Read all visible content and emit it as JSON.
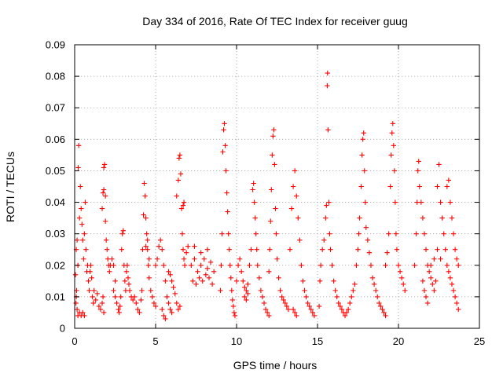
{
  "chart_data": {
    "type": "scatter",
    "title": "Day 334 of 2016, Rate Of TEC Index for receiver guug",
    "xlabel": "GPS time / hours",
    "ylabel": "ROTI / TECUs",
    "xlim": [
      0,
      25
    ],
    "ylim": [
      0,
      0.09
    ],
    "xticks": [
      0,
      5,
      10,
      15,
      20,
      25
    ],
    "xtick_labels": [
      "0",
      "5",
      "10",
      "15",
      "20",
      "25"
    ],
    "yticks": [
      0,
      0.01,
      0.02,
      0.03,
      0.04,
      0.05,
      0.06,
      0.07,
      0.08,
      0.09
    ],
    "ytick_labels": [
      "0",
      "0.01",
      "0.02",
      "0.03",
      "0.04",
      "0.05",
      "0.06",
      "0.07",
      "0.08",
      "0.09"
    ],
    "grid": true,
    "marker": "plus",
    "color": "#ff0000",
    "points": [
      [
        0.05,
        0.017
      ],
      [
        0.1,
        0.025
      ],
      [
        0.15,
        0.028
      ],
      [
        0.2,
        0.02
      ],
      [
        0.22,
        0.051
      ],
      [
        0.25,
        0.058
      ],
      [
        0.3,
        0.035
      ],
      [
        0.35,
        0.045
      ],
      [
        0.4,
        0.038
      ],
      [
        0.45,
        0.033
      ],
      [
        0.5,
        0.028
      ],
      [
        0.55,
        0.022
      ],
      [
        0.6,
        0.03
      ],
      [
        0.65,
        0.04
      ],
      [
        0.7,
        0.025
      ],
      [
        0.75,
        0.018
      ],
      [
        0.08,
        0.008
      ],
      [
        0.15,
        0.006
      ],
      [
        0.2,
        0.004
      ],
      [
        0.3,
        0.005
      ],
      [
        0.4,
        0.004
      ],
      [
        0.5,
        0.005
      ],
      [
        0.6,
        0.004
      ],
      [
        0.1,
        0.01
      ],
      [
        0.12,
        0.012
      ],
      [
        0.8,
        0.02
      ],
      [
        0.85,
        0.015
      ],
      [
        0.9,
        0.012
      ],
      [
        0.95,
        0.018
      ],
      [
        1.0,
        0.02
      ],
      [
        1.05,
        0.016
      ],
      [
        1.1,
        0.01
      ],
      [
        1.15,
        0.008
      ],
      [
        1.2,
        0.012
      ],
      [
        1.3,
        0.009
      ],
      [
        1.4,
        0.011
      ],
      [
        1.5,
        0.007
      ],
      [
        1.6,
        0.006
      ],
      [
        1.7,
        0.008
      ],
      [
        1.75,
        0.01
      ],
      [
        1.8,
        0.005
      ],
      [
        1.7,
        0.038
      ],
      [
        1.75,
        0.043
      ],
      [
        1.8,
        0.051
      ],
      [
        1.85,
        0.052
      ],
      [
        1.9,
        0.034
      ],
      [
        1.95,
        0.028
      ],
      [
        2.0,
        0.025
      ],
      [
        2.05,
        0.022
      ],
      [
        2.1,
        0.02
      ],
      [
        2.15,
        0.018
      ],
      [
        2.2,
        0.02
      ],
      [
        1.9,
        0.042
      ],
      [
        1.8,
        0.044
      ],
      [
        2.4,
        0.012
      ],
      [
        2.5,
        0.01
      ],
      [
        2.6,
        0.008
      ],
      [
        2.7,
        0.006
      ],
      [
        2.75,
        0.005
      ],
      [
        2.8,
        0.007
      ],
      [
        2.85,
        0.01
      ],
      [
        2.9,
        0.025
      ],
      [
        2.95,
        0.03
      ],
      [
        3.0,
        0.031
      ],
      [
        3.05,
        0.02
      ],
      [
        3.1,
        0.015
      ],
      [
        3.15,
        0.012
      ],
      [
        3.2,
        0.018
      ],
      [
        3.25,
        0.02
      ],
      [
        3.3,
        0.016
      ],
      [
        3.35,
        0.014
      ],
      [
        3.4,
        0.012
      ],
      [
        3.5,
        0.01
      ],
      [
        3.6,
        0.009
      ],
      [
        3.7,
        0.01
      ],
      [
        3.8,
        0.008
      ],
      [
        3.9,
        0.006
      ],
      [
        4.0,
        0.005
      ],
      [
        2.5,
        0.015
      ],
      [
        2.3,
        0.022
      ],
      [
        2.4,
        0.02
      ],
      [
        4.1,
        0.009
      ],
      [
        4.15,
        0.012
      ],
      [
        4.2,
        0.025
      ],
      [
        4.25,
        0.036
      ],
      [
        4.3,
        0.046
      ],
      [
        4.35,
        0.042
      ],
      [
        4.4,
        0.035
      ],
      [
        4.45,
        0.03
      ],
      [
        4.5,
        0.025
      ],
      [
        4.55,
        0.02
      ],
      [
        4.6,
        0.016
      ],
      [
        4.7,
        0.012
      ],
      [
        4.8,
        0.01
      ],
      [
        4.9,
        0.008
      ],
      [
        5.0,
        0.007
      ],
      [
        4.4,
        0.026
      ],
      [
        4.5,
        0.028
      ],
      [
        4.6,
        0.022
      ],
      [
        5.0,
        0.02
      ],
      [
        5.1,
        0.022
      ],
      [
        5.2,
        0.026
      ],
      [
        5.3,
        0.028
      ],
      [
        5.4,
        0.025
      ],
      [
        5.5,
        0.02
      ],
      [
        5.6,
        0.015
      ],
      [
        5.7,
        0.01
      ],
      [
        5.8,
        0.008
      ],
      [
        5.9,
        0.006
      ],
      [
        6.0,
        0.005
      ],
      [
        5.5,
        0.004
      ],
      [
        5.6,
        0.003
      ],
      [
        5.4,
        0.006
      ],
      [
        5.8,
        0.018
      ],
      [
        5.9,
        0.017
      ],
      [
        6.0,
        0.015
      ],
      [
        6.1,
        0.013
      ],
      [
        6.2,
        0.011
      ],
      [
        6.3,
        0.008
      ],
      [
        6.4,
        0.006
      ],
      [
        6.5,
        0.007
      ],
      [
        6.3,
        0.042
      ],
      [
        6.4,
        0.047
      ],
      [
        6.45,
        0.054
      ],
      [
        6.5,
        0.055
      ],
      [
        6.55,
        0.049
      ],
      [
        6.6,
        0.038
      ],
      [
        6.65,
        0.03
      ],
      [
        6.7,
        0.025
      ],
      [
        6.75,
        0.022
      ],
      [
        6.8,
        0.02
      ],
      [
        6.9,
        0.024
      ],
      [
        7.0,
        0.026
      ],
      [
        6.7,
        0.039
      ],
      [
        6.75,
        0.04
      ],
      [
        7.2,
        0.02
      ],
      [
        7.4,
        0.022
      ],
      [
        7.6,
        0.018
      ],
      [
        7.8,
        0.02
      ],
      [
        8.0,
        0.022
      ],
      [
        8.2,
        0.019
      ],
      [
        8.4,
        0.021
      ],
      [
        8.6,
        0.018
      ],
      [
        7.3,
        0.015
      ],
      [
        7.5,
        0.014
      ],
      [
        7.7,
        0.016
      ],
      [
        7.9,
        0.015
      ],
      [
        8.1,
        0.017
      ],
      [
        8.3,
        0.016
      ],
      [
        8.5,
        0.014
      ],
      [
        7.4,
        0.026
      ],
      [
        7.8,
        0.024
      ],
      [
        8.2,
        0.025
      ],
      [
        9.0,
        0.012
      ],
      [
        9.05,
        0.02
      ],
      [
        9.1,
        0.03
      ],
      [
        9.15,
        0.056
      ],
      [
        9.2,
        0.063
      ],
      [
        9.25,
        0.065
      ],
      [
        9.3,
        0.058
      ],
      [
        9.35,
        0.05
      ],
      [
        9.4,
        0.043
      ],
      [
        9.45,
        0.037
      ],
      [
        9.5,
        0.03
      ],
      [
        9.55,
        0.025
      ],
      [
        9.6,
        0.02
      ],
      [
        9.65,
        0.016
      ],
      [
        9.7,
        0.012
      ],
      [
        9.75,
        0.009
      ],
      [
        9.8,
        0.007
      ],
      [
        9.85,
        0.005
      ],
      [
        9.9,
        0.004
      ],
      [
        10.0,
        0.015
      ],
      [
        10.1,
        0.02
      ],
      [
        10.2,
        0.022
      ],
      [
        10.3,
        0.018
      ],
      [
        10.4,
        0.015
      ],
      [
        10.5,
        0.013
      ],
      [
        10.6,
        0.012
      ],
      [
        10.7,
        0.014
      ],
      [
        10.8,
        0.02
      ],
      [
        10.9,
        0.025
      ],
      [
        11.0,
        0.044
      ],
      [
        11.05,
        0.046
      ],
      [
        11.1,
        0.04
      ],
      [
        11.15,
        0.035
      ],
      [
        11.2,
        0.03
      ],
      [
        11.25,
        0.025
      ],
      [
        11.3,
        0.02
      ],
      [
        11.4,
        0.016
      ],
      [
        11.5,
        0.012
      ],
      [
        11.6,
        0.01
      ],
      [
        11.7,
        0.008
      ],
      [
        11.8,
        0.006
      ],
      [
        11.9,
        0.005
      ],
      [
        12.0,
        0.004
      ],
      [
        10.5,
        0.01
      ],
      [
        10.6,
        0.009
      ],
      [
        10.7,
        0.011
      ],
      [
        12.0,
        0.018
      ],
      [
        12.05,
        0.025
      ],
      [
        12.1,
        0.034
      ],
      [
        12.15,
        0.044
      ],
      [
        12.2,
        0.055
      ],
      [
        12.25,
        0.061
      ],
      [
        12.3,
        0.063
      ],
      [
        12.35,
        0.052
      ],
      [
        12.4,
        0.038
      ],
      [
        12.45,
        0.03
      ],
      [
        12.5,
        0.022
      ],
      [
        12.6,
        0.016
      ],
      [
        12.7,
        0.012
      ],
      [
        12.8,
        0.01
      ],
      [
        12.9,
        0.009
      ],
      [
        13.0,
        0.008
      ],
      [
        13.1,
        0.007
      ],
      [
        13.2,
        0.006
      ],
      [
        13.3,
        0.025
      ],
      [
        13.4,
        0.038
      ],
      [
        13.5,
        0.045
      ],
      [
        13.6,
        0.05
      ],
      [
        13.7,
        0.042
      ],
      [
        13.8,
        0.035
      ],
      [
        13.9,
        0.028
      ],
      [
        14.0,
        0.02
      ],
      [
        14.1,
        0.015
      ],
      [
        14.2,
        0.012
      ],
      [
        14.3,
        0.01
      ],
      [
        14.4,
        0.008
      ],
      [
        14.5,
        0.007
      ],
      [
        14.6,
        0.006
      ],
      [
        14.7,
        0.005
      ],
      [
        14.8,
        0.004
      ],
      [
        13.5,
        0.006
      ],
      [
        13.6,
        0.005
      ],
      [
        13.7,
        0.004
      ],
      [
        15.1,
        0.007
      ],
      [
        15.15,
        0.015
      ],
      [
        15.2,
        0.02
      ],
      [
        15.3,
        0.025
      ],
      [
        15.4,
        0.028
      ],
      [
        15.5,
        0.035
      ],
      [
        15.55,
        0.039
      ],
      [
        15.6,
        0.077
      ],
      [
        15.62,
        0.081
      ],
      [
        15.65,
        0.063
      ],
      [
        15.7,
        0.04
      ],
      [
        15.75,
        0.03
      ],
      [
        15.8,
        0.025
      ],
      [
        15.9,
        0.02
      ],
      [
        16.0,
        0.015
      ],
      [
        16.1,
        0.012
      ],
      [
        16.2,
        0.01
      ],
      [
        16.3,
        0.008
      ],
      [
        16.4,
        0.007
      ],
      [
        16.5,
        0.006
      ],
      [
        16.6,
        0.005
      ],
      [
        16.7,
        0.004
      ],
      [
        16.8,
        0.005
      ],
      [
        16.9,
        0.006
      ],
      [
        17.0,
        0.008
      ],
      [
        17.1,
        0.01
      ],
      [
        17.2,
        0.012
      ],
      [
        17.3,
        0.014
      ],
      [
        17.4,
        0.02
      ],
      [
        17.5,
        0.025
      ],
      [
        17.55,
        0.03
      ],
      [
        17.6,
        0.035
      ],
      [
        17.7,
        0.045
      ],
      [
        17.75,
        0.055
      ],
      [
        17.8,
        0.06
      ],
      [
        17.85,
        0.062
      ],
      [
        17.9,
        0.05
      ],
      [
        17.95,
        0.04
      ],
      [
        18.0,
        0.032
      ],
      [
        18.1,
        0.028
      ],
      [
        18.2,
        0.024
      ],
      [
        18.3,
        0.02
      ],
      [
        18.4,
        0.016
      ],
      [
        18.5,
        0.014
      ],
      [
        18.6,
        0.012
      ],
      [
        18.7,
        0.01
      ],
      [
        18.8,
        0.008
      ],
      [
        18.9,
        0.007
      ],
      [
        19.0,
        0.006
      ],
      [
        19.1,
        0.005
      ],
      [
        19.2,
        0.004
      ],
      [
        19.2,
        0.02
      ],
      [
        19.3,
        0.024
      ],
      [
        19.4,
        0.03
      ],
      [
        19.5,
        0.045
      ],
      [
        19.55,
        0.055
      ],
      [
        19.6,
        0.062
      ],
      [
        19.65,
        0.065
      ],
      [
        19.7,
        0.058
      ],
      [
        19.75,
        0.05
      ],
      [
        19.8,
        0.04
      ],
      [
        19.85,
        0.03
      ],
      [
        19.9,
        0.025
      ],
      [
        20.0,
        0.02
      ],
      [
        20.1,
        0.018
      ],
      [
        20.2,
        0.016
      ],
      [
        20.3,
        0.014
      ],
      [
        20.4,
        0.012
      ],
      [
        21.0,
        0.02
      ],
      [
        21.1,
        0.03
      ],
      [
        21.15,
        0.04
      ],
      [
        21.2,
        0.05
      ],
      [
        21.25,
        0.053
      ],
      [
        21.3,
        0.045
      ],
      [
        21.4,
        0.04
      ],
      [
        21.5,
        0.035
      ],
      [
        21.6,
        0.03
      ],
      [
        21.7,
        0.025
      ],
      [
        21.8,
        0.02
      ],
      [
        21.9,
        0.018
      ],
      [
        22.0,
        0.016
      ],
      [
        22.1,
        0.014
      ],
      [
        22.2,
        0.012
      ],
      [
        22.3,
        0.015
      ],
      [
        22.4,
        0.045
      ],
      [
        22.5,
        0.052
      ],
      [
        22.6,
        0.04
      ],
      [
        22.7,
        0.035
      ],
      [
        22.8,
        0.03
      ],
      [
        22.9,
        0.025
      ],
      [
        23.0,
        0.02
      ],
      [
        23.1,
        0.018
      ],
      [
        23.2,
        0.016
      ],
      [
        23.3,
        0.014
      ],
      [
        23.4,
        0.012
      ],
      [
        23.5,
        0.01
      ],
      [
        23.6,
        0.008
      ],
      [
        23.7,
        0.006
      ],
      [
        23.0,
        0.045
      ],
      [
        23.1,
        0.047
      ],
      [
        23.2,
        0.04
      ],
      [
        23.3,
        0.035
      ],
      [
        23.4,
        0.03
      ],
      [
        23.5,
        0.025
      ],
      [
        23.6,
        0.022
      ],
      [
        23.7,
        0.02
      ],
      [
        21.5,
        0.015
      ],
      [
        21.6,
        0.012
      ],
      [
        21.7,
        0.01
      ],
      [
        21.8,
        0.008
      ],
      [
        22.0,
        0.02
      ],
      [
        22.2,
        0.022
      ],
      [
        22.4,
        0.025
      ],
      [
        22.6,
        0.022
      ]
    ]
  }
}
